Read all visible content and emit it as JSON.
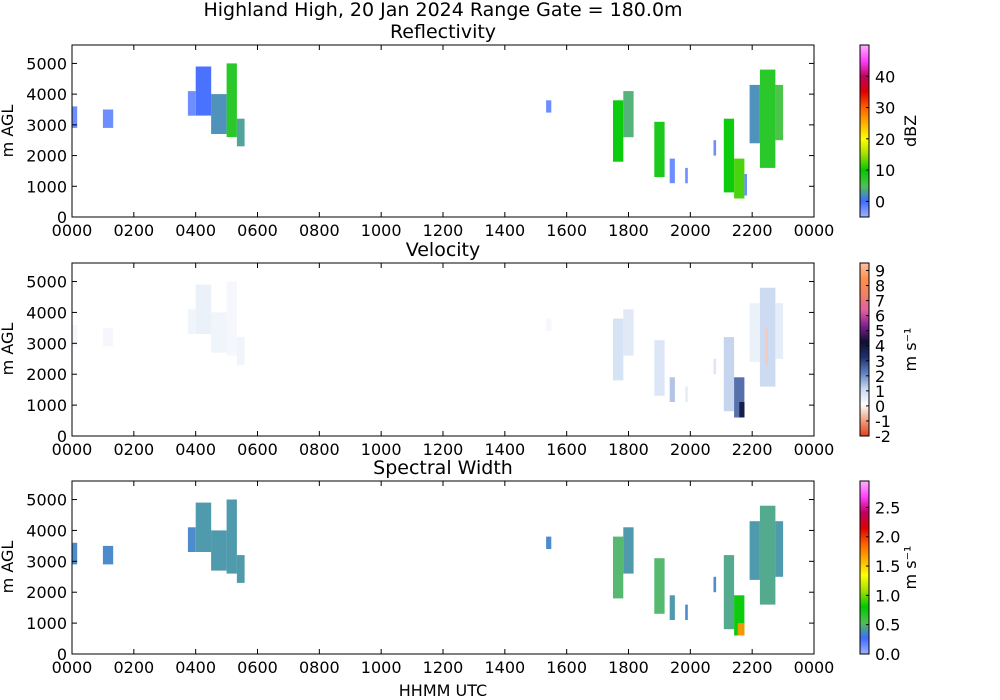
{
  "figure": {
    "suptitle": "Highland High, 20 Jan 2024 Range Gate = 180.0m",
    "xlabel": "HHMM UTC"
  },
  "chart_data": [
    {
      "type": "heatmap",
      "title": "Reflectivity",
      "ylabel": "m AGL",
      "xticks": [
        "0000",
        "0200",
        "0400",
        "0600",
        "0800",
        "1000",
        "1200",
        "1400",
        "1600",
        "1800",
        "2000",
        "2200",
        "0000"
      ],
      "yticks": [
        "0",
        "1000",
        "2000",
        "3000",
        "4000",
        "5000"
      ],
      "ylim": [
        0,
        5600
      ],
      "xlim_hours": [
        0,
        24
      ],
      "colorbar": {
        "label": "dBZ",
        "ticks": [
          "0",
          "10",
          "20",
          "30",
          "40"
        ],
        "range": [
          -5,
          50
        ],
        "colors": [
          "#9fb3ff",
          "#3f6bff",
          "#50c050",
          "#00c800",
          "#a0e000",
          "#ffff00",
          "#ffb000",
          "#ff6000",
          "#e00000",
          "#c00060",
          "#ff40ff",
          "#ffb0ff"
        ]
      },
      "echoes": [
        {
          "t0": "0000",
          "t1": "0010",
          "z0": 2900,
          "z1": 3600,
          "value": -2
        },
        {
          "t0": "0100",
          "t1": "0120",
          "z0": 2900,
          "z1": 3500,
          "value": -2
        },
        {
          "t0": "0345",
          "t1": "0400",
          "z0": 3300,
          "z1": 4100,
          "value": -2
        },
        {
          "t0": "0400",
          "t1": "0430",
          "z0": 3300,
          "z1": 4900,
          "value": 0
        },
        {
          "t0": "0430",
          "t1": "0500",
          "z0": 2700,
          "z1": 4000,
          "value": 2
        },
        {
          "t0": "0500",
          "t1": "0520",
          "z0": 2600,
          "z1": 5000,
          "value": 8
        },
        {
          "t0": "0520",
          "t1": "0535",
          "z0": 2300,
          "z1": 3200,
          "value": 3
        },
        {
          "t0": "1520",
          "t1": "1530",
          "z0": 3400,
          "z1": 3800,
          "value": -2
        },
        {
          "t0": "1730",
          "t1": "1750",
          "z0": 1800,
          "z1": 3800,
          "value": 10
        },
        {
          "t0": "1750",
          "t1": "1810",
          "z0": 2600,
          "z1": 4100,
          "value": 4
        },
        {
          "t0": "1850",
          "t1": "1910",
          "z0": 1300,
          "z1": 3100,
          "value": 9
        },
        {
          "t0": "1920",
          "t1": "1930",
          "z0": 1100,
          "z1": 1900,
          "value": -2
        },
        {
          "t0": "1950",
          "t1": "1955",
          "z0": 1100,
          "z1": 1600,
          "value": -2
        },
        {
          "t0": "2045",
          "t1": "2050",
          "z0": 2000,
          "z1": 2500,
          "value": -2
        },
        {
          "t0": "2105",
          "t1": "2125",
          "z0": 800,
          "z1": 3200,
          "value": 10
        },
        {
          "t0": "2125",
          "t1": "2145",
          "z0": 600,
          "z1": 1900,
          "value": 12
        },
        {
          "t0": "2145",
          "t1": "2150",
          "z0": 700,
          "z1": 1400,
          "value": -2
        },
        {
          "t0": "2155",
          "t1": "2215",
          "z0": 2400,
          "z1": 4300,
          "value": 2
        },
        {
          "t0": "2215",
          "t1": "2245",
          "z0": 1600,
          "z1": 4800,
          "value": 8
        },
        {
          "t0": "2245",
          "t1": "2300",
          "z0": 2500,
          "z1": 4300,
          "value": 6
        }
      ]
    },
    {
      "type": "heatmap",
      "title": "Velocity",
      "ylabel": "m AGL",
      "xticks": [
        "0000",
        "0200",
        "0400",
        "0600",
        "0800",
        "1000",
        "1200",
        "1400",
        "1600",
        "1800",
        "2000",
        "2200",
        "0000"
      ],
      "yticks": [
        "0",
        "1000",
        "2000",
        "3000",
        "4000",
        "5000"
      ],
      "ylim": [
        0,
        5600
      ],
      "xlim_hours": [
        0,
        24
      ],
      "colorbar": {
        "label": "m s⁻¹",
        "ticks": [
          "-2",
          "-1",
          "0",
          "1",
          "2",
          "3",
          "4",
          "5",
          "6",
          "7",
          "8",
          "9"
        ],
        "range": [
          -2,
          9.5
        ],
        "colors": [
          "#e04020",
          "#f0a080",
          "#ffffff",
          "#c8d8f0",
          "#6080c0",
          "#203070",
          "#101030",
          "#802090",
          "#e060a0",
          "#f08060",
          "#ff9050",
          "#ffc0a0"
        ]
      },
      "echoes": [
        {
          "t0": "0000",
          "t1": "0010",
          "z0": 2900,
          "z1": 3600,
          "value": 0.3
        },
        {
          "t0": "0100",
          "t1": "0120",
          "z0": 2900,
          "z1": 3500,
          "value": 0.3
        },
        {
          "t0": "0345",
          "t1": "0400",
          "z0": 3300,
          "z1": 4100,
          "value": 0.4
        },
        {
          "t0": "0400",
          "t1": "0430",
          "z0": 3300,
          "z1": 4900,
          "value": 0.5
        },
        {
          "t0": "0430",
          "t1": "0500",
          "z0": 2700,
          "z1": 4000,
          "value": 0.4
        },
        {
          "t0": "0500",
          "t1": "0520",
          "z0": 2600,
          "z1": 5000,
          "value": 0.3
        },
        {
          "t0": "0520",
          "t1": "0535",
          "z0": 2300,
          "z1": 3200,
          "value": 0.4
        },
        {
          "t0": "1520",
          "t1": "1530",
          "z0": 3400,
          "z1": 3800,
          "value": 0.3
        },
        {
          "t0": "1730",
          "t1": "1750",
          "z0": 1800,
          "z1": 3800,
          "value": 0.9
        },
        {
          "t0": "1750",
          "t1": "1810",
          "z0": 2600,
          "z1": 4100,
          "value": 0.7
        },
        {
          "t0": "1850",
          "t1": "1910",
          "z0": 1300,
          "z1": 3100,
          "value": 0.8
        },
        {
          "t0": "1920",
          "t1": "1930",
          "z0": 1100,
          "z1": 1900,
          "value": 1.4
        },
        {
          "t0": "1950",
          "t1": "1955",
          "z0": 1100,
          "z1": 1600,
          "value": 0.6
        },
        {
          "t0": "2045",
          "t1": "2050",
          "z0": 2000,
          "z1": 2500,
          "value": 0.8
        },
        {
          "t0": "2105",
          "t1": "2125",
          "z0": 800,
          "z1": 3200,
          "value": 1.2
        },
        {
          "t0": "2125",
          "t1": "2145",
          "z0": 600,
          "z1": 1900,
          "value": 2.5
        },
        {
          "t0": "2135",
          "t1": "2145",
          "z0": 600,
          "z1": 1100,
          "value": 4
        },
        {
          "t0": "2155",
          "t1": "2215",
          "z0": 2400,
          "z1": 4300,
          "value": 0.5
        },
        {
          "t0": "2215",
          "t1": "2245",
          "z0": 1600,
          "z1": 4800,
          "value": 1.1
        },
        {
          "t0": "2225",
          "t1": "2230",
          "z0": 2300,
          "z1": 3500,
          "value": -0.5
        },
        {
          "t0": "2245",
          "t1": "2300",
          "z0": 2500,
          "z1": 4300,
          "value": 0.6
        }
      ]
    },
    {
      "type": "heatmap",
      "title": "Spectral Width",
      "ylabel": "m AGL",
      "xticks": [
        "0000",
        "0200",
        "0400",
        "0600",
        "0800",
        "1000",
        "1200",
        "1400",
        "1600",
        "1800",
        "2000",
        "2200",
        "0000"
      ],
      "yticks": [
        "0",
        "1000",
        "2000",
        "3000",
        "4000",
        "5000"
      ],
      "ylim": [
        0,
        5600
      ],
      "xlim_hours": [
        0,
        24
      ],
      "colorbar": {
        "label": "m s⁻¹",
        "ticks": [
          "0.0",
          "0.5",
          "1.0",
          "1.5",
          "2.0",
          "2.5"
        ],
        "range": [
          0,
          2.95
        ],
        "colors": [
          "#9fb3ff",
          "#3f6bff",
          "#50c050",
          "#00c800",
          "#a0e000",
          "#ffff00",
          "#ffb000",
          "#ff6000",
          "#e00000",
          "#c00060",
          "#ff40ff",
          "#ffb0ff"
        ]
      },
      "echoes": [
        {
          "t0": "0000",
          "t1": "0010",
          "z0": 2900,
          "z1": 3600,
          "value": 0.35
        },
        {
          "t0": "0100",
          "t1": "0120",
          "z0": 2900,
          "z1": 3500,
          "value": 0.35
        },
        {
          "t0": "0345",
          "t1": "0400",
          "z0": 3300,
          "z1": 4100,
          "value": 0.35
        },
        {
          "t0": "0400",
          "t1": "0430",
          "z0": 3300,
          "z1": 4900,
          "value": 0.4
        },
        {
          "t0": "0430",
          "t1": "0500",
          "z0": 2700,
          "z1": 4000,
          "value": 0.4
        },
        {
          "t0": "0500",
          "t1": "0520",
          "z0": 2600,
          "z1": 5000,
          "value": 0.4
        },
        {
          "t0": "0520",
          "t1": "0535",
          "z0": 2300,
          "z1": 3200,
          "value": 0.4
        },
        {
          "t0": "1520",
          "t1": "1530",
          "z0": 3400,
          "z1": 3800,
          "value": 0.35
        },
        {
          "t0": "1730",
          "t1": "1750",
          "z0": 1800,
          "z1": 3800,
          "value": 0.5
        },
        {
          "t0": "1750",
          "t1": "1810",
          "z0": 2600,
          "z1": 4100,
          "value": 0.4
        },
        {
          "t0": "1850",
          "t1": "1910",
          "z0": 1300,
          "z1": 3100,
          "value": 0.5
        },
        {
          "t0": "1920",
          "t1": "1930",
          "z0": 1100,
          "z1": 1900,
          "value": 0.4
        },
        {
          "t0": "1950",
          "t1": "1955",
          "z0": 1100,
          "z1": 1600,
          "value": 0.35
        },
        {
          "t0": "2045",
          "t1": "2050",
          "z0": 2000,
          "z1": 2500,
          "value": 0.35
        },
        {
          "t0": "2105",
          "t1": "2125",
          "z0": 800,
          "z1": 3200,
          "value": 0.45
        },
        {
          "t0": "2125",
          "t1": "2145",
          "z0": 600,
          "z1": 1900,
          "value": 0.8
        },
        {
          "t0": "2132",
          "t1": "2145",
          "z0": 600,
          "z1": 1000,
          "value": 1.7
        },
        {
          "t0": "2155",
          "t1": "2215",
          "z0": 2400,
          "z1": 4300,
          "value": 0.4
        },
        {
          "t0": "2215",
          "t1": "2245",
          "z0": 1600,
          "z1": 4800,
          "value": 0.45
        },
        {
          "t0": "2245",
          "t1": "2300",
          "z0": 2500,
          "z1": 4300,
          "value": 0.4
        }
      ]
    }
  ]
}
